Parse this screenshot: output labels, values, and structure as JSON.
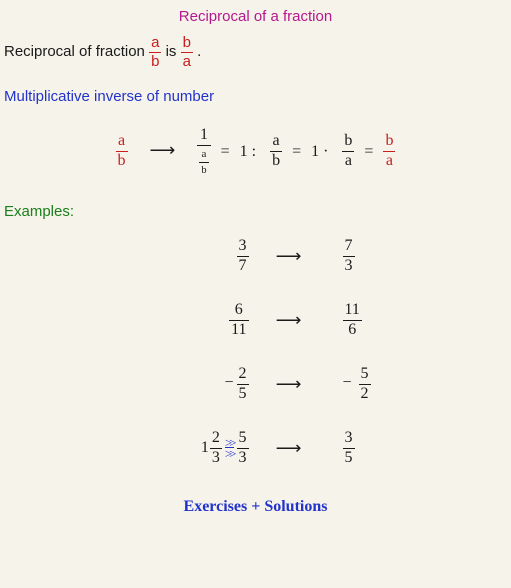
{
  "colors": {
    "background": "#f6f3ea",
    "title": "#b5178e",
    "red": "#c81e1e",
    "blue": "#2233cc",
    "green": "#1a7f1a",
    "text": "#1a1a1a"
  },
  "title": "Reciprocal of a fraction",
  "intro": {
    "prefix": "Reciprocal of fraction ",
    "frac1_num": "a",
    "frac1_den": "b",
    "mid": " is ",
    "frac2_num": "b",
    "frac2_den": "a",
    "suffix": "."
  },
  "subheading": "Multiplicative inverse of number",
  "derivation": {
    "start_num": "a",
    "start_den": "b",
    "arrow": "⟶",
    "one_numer": "1",
    "nested_num": "a",
    "nested_den": "b",
    "eq": "=",
    "part2_lhs": "1 :",
    "part2_num": "a",
    "part2_den": "b",
    "part3_lhs": "1 ·",
    "part3_num": "b",
    "part3_den": "a",
    "result_num": "b",
    "result_den": "a"
  },
  "examples_label": "Examples:",
  "examples": [
    {
      "left_neg": "",
      "left_int": "",
      "left_num": "3",
      "left_den": "7",
      "mid_eq": "",
      "mid_num": "",
      "mid_den": "",
      "right_neg": "",
      "right_num": "7",
      "right_den": "3"
    },
    {
      "left_neg": "",
      "left_int": "",
      "left_num": "6",
      "left_den": "11",
      "mid_eq": "",
      "mid_num": "",
      "mid_den": "",
      "right_neg": "",
      "right_num": "11",
      "right_den": "6"
    },
    {
      "left_neg": "−",
      "left_int": "",
      "left_num": "2",
      "left_den": "5",
      "mid_eq": "",
      "mid_num": "",
      "mid_den": "",
      "right_neg": "−",
      "right_num": "5",
      "right_den": "2"
    },
    {
      "left_neg": "",
      "left_int": "1",
      "left_num": "2",
      "left_den": "3",
      "mid_eq": "gg",
      "mid_num": "5",
      "mid_den": "3",
      "right_neg": "",
      "right_num": "3",
      "right_den": "5"
    }
  ],
  "arrow": "⟶",
  "footer": "Exercises + Solutions"
}
